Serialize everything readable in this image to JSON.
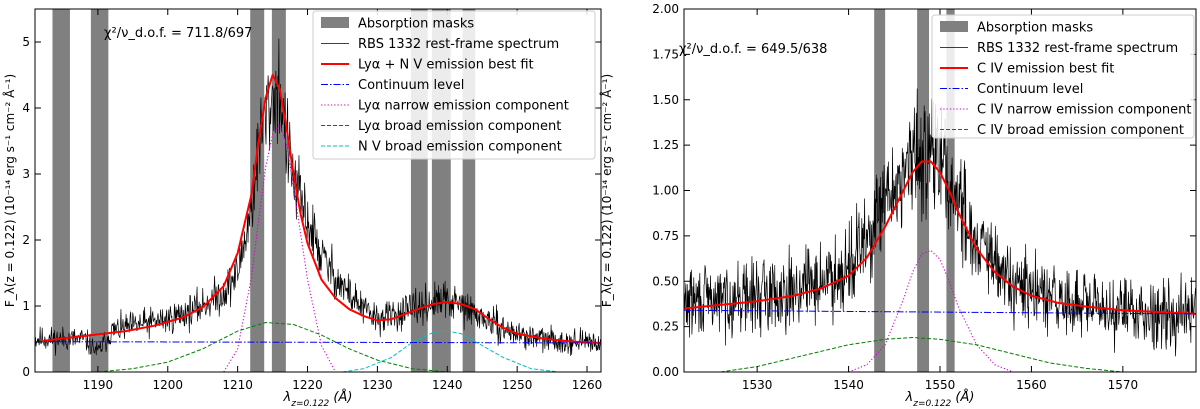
{
  "chart_data": [
    {
      "type": "line",
      "xlabel": "λ_{z=0.122} (Å)",
      "ylabel": "F_λ(z = 0.122) (10⁻¹⁴ erg s⁻¹ cm⁻² Å⁻¹)",
      "xlim": [
        1181,
        1262
      ],
      "ylim": [
        0,
        5.5
      ],
      "xticks": [
        1190,
        1200,
        1210,
        1220,
        1230,
        1240,
        1250,
        1260
      ],
      "yticks": [
        0,
        1,
        2,
        3,
        4,
        5
      ],
      "grid": false,
      "legend_position": "top-right",
      "annotation": "χ²/ν_d.o.f. = 711.8/697",
      "legend": [
        {
          "label": "Absorption masks",
          "color": "#808080",
          "style": "patch"
        },
        {
          "label": "RBS 1332 rest-frame spectrum",
          "color": "#000000",
          "style": "solid-thin"
        },
        {
          "label": "Lyα + N V emission best fit",
          "color": "#ff0000",
          "style": "solid-thick"
        },
        {
          "label": "Continuum level",
          "color": "#0000ff",
          "style": "dashdot"
        },
        {
          "label": "Lyα narrow emission component",
          "color": "#cc00cc",
          "style": "dotted"
        },
        {
          "label": "Lyα broad emission component",
          "color": "#008000",
          "style": "dashed"
        },
        {
          "label": "N V broad emission component",
          "color": "#00bfbf",
          "style": "dashed"
        }
      ],
      "masks": [
        [
          1183.5,
          1186.0
        ],
        [
          1189.0,
          1191.5
        ],
        [
          1211.8,
          1213.8
        ],
        [
          1214.9,
          1216.9
        ],
        [
          1234.8,
          1237.2
        ],
        [
          1237.8,
          1240.5
        ],
        [
          1242.2,
          1244.0
        ]
      ],
      "series": [
        {
          "key": "spectrum",
          "x": [
            1182,
            1188,
            1190,
            1192,
            1196,
            1200,
            1204,
            1208,
            1210,
            1212,
            1213,
            1214,
            1215,
            1216,
            1217,
            1218,
            1220,
            1222,
            1225,
            1228,
            1230,
            1233,
            1236,
            1238,
            1240,
            1242,
            1245,
            1248,
            1252,
            1256,
            1262
          ],
          "y": [
            0.5,
            0.5,
            0.3,
            0.62,
            0.72,
            0.8,
            0.95,
            1.2,
            1.5,
            2.5,
            3.4,
            3.9,
            4.15,
            4.3,
            3.5,
            2.9,
            2.3,
            1.75,
            1.3,
            0.95,
            0.8,
            0.88,
            0.98,
            1.05,
            1.08,
            1.0,
            0.82,
            0.65,
            0.52,
            0.47,
            0.45
          ]
        },
        {
          "key": "best_fit",
          "x": [
            1182,
            1186,
            1190,
            1194,
            1198,
            1202,
            1205,
            1208,
            1210,
            1212,
            1213,
            1214,
            1215,
            1216,
            1217,
            1218,
            1219,
            1220,
            1222,
            1224,
            1226,
            1228,
            1230,
            1232,
            1234,
            1236,
            1238,
            1240,
            1242,
            1244,
            1246,
            1248,
            1250,
            1254,
            1258,
            1262
          ],
          "y": [
            0.47,
            0.52,
            0.57,
            0.62,
            0.7,
            0.82,
            0.98,
            1.3,
            1.8,
            2.7,
            3.5,
            4.15,
            4.5,
            4.3,
            3.7,
            3.0,
            2.4,
            1.95,
            1.4,
            1.12,
            0.95,
            0.85,
            0.78,
            0.8,
            0.88,
            0.96,
            1.03,
            1.06,
            1.03,
            0.95,
            0.8,
            0.67,
            0.58,
            0.5,
            0.46,
            0.44
          ]
        },
        {
          "key": "continuum",
          "x": [
            1181,
            1262
          ],
          "y": [
            0.46,
            0.44
          ]
        },
        {
          "key": "narrow",
          "x": [
            1208,
            1210,
            1212,
            1213,
            1214,
            1215,
            1216,
            1217,
            1218,
            1220,
            1222,
            1224
          ],
          "y": [
            0.0,
            0.35,
            1.45,
            2.3,
            3.1,
            3.6,
            3.75,
            3.45,
            2.8,
            1.4,
            0.4,
            0.0
          ]
        },
        {
          "key": "broad",
          "x": [
            1190,
            1195,
            1200,
            1205,
            1210,
            1214,
            1218,
            1222,
            1226,
            1230,
            1235,
            1240
          ],
          "y": [
            0.0,
            0.05,
            0.15,
            0.35,
            0.62,
            0.75,
            0.72,
            0.56,
            0.35,
            0.18,
            0.05,
            0.0
          ]
        },
        {
          "key": "nv",
          "x": [
            1225,
            1228,
            1232,
            1235,
            1238,
            1240,
            1242,
            1245,
            1248,
            1252,
            1256
          ],
          "y": [
            0.0,
            0.05,
            0.22,
            0.45,
            0.6,
            0.62,
            0.58,
            0.4,
            0.22,
            0.05,
            0.0
          ]
        }
      ]
    },
    {
      "type": "line",
      "xlabel": "λ_{z=0.122} (Å)",
      "ylabel": "F_λ(z = 0.122) (10⁻¹⁴ erg s⁻¹ cm⁻² Å⁻¹)",
      "xlim": [
        1522,
        1578
      ],
      "ylim": [
        0,
        2.0
      ],
      "xticks": [
        1530,
        1540,
        1550,
        1560,
        1570
      ],
      "yticks": [
        0.0,
        0.25,
        0.5,
        0.75,
        1.0,
        1.25,
        1.5,
        1.75,
        2.0
      ],
      "grid": false,
      "legend_position": "top-right",
      "annotation": "χ²/ν_d.o.f. = 649.5/638",
      "legend": [
        {
          "label": "Absorption masks",
          "color": "#808080",
          "style": "patch"
        },
        {
          "label": "RBS 1332 rest-frame spectrum",
          "color": "#000000",
          "style": "solid-thin"
        },
        {
          "label": "C IV emission best fit",
          "color": "#ff0000",
          "style": "solid-thick"
        },
        {
          "label": "Continuum level",
          "color": "#0000ff",
          "style": "dashdot"
        },
        {
          "label": "C IV narrow emission component",
          "color": "#cc00cc",
          "style": "dotted"
        },
        {
          "label": "C IV broad emission component",
          "color": "#008000",
          "style": "dashed"
        }
      ],
      "masks": [
        [
          1542.8,
          1544.0
        ],
        [
          1547.5,
          1548.8
        ],
        [
          1550.7,
          1551.6
        ]
      ],
      "series": [
        {
          "key": "spectrum",
          "x": [
            1522,
            1526,
            1530,
            1534,
            1538,
            1540,
            1542,
            1544,
            1546,
            1548,
            1549,
            1550,
            1552,
            1554,
            1556,
            1558,
            1562,
            1566,
            1570,
            1574,
            1578
          ],
          "y": [
            0.38,
            0.4,
            0.42,
            0.46,
            0.52,
            0.6,
            0.72,
            0.92,
            1.1,
            1.2,
            1.25,
            1.15,
            0.95,
            0.72,
            0.58,
            0.48,
            0.4,
            0.36,
            0.34,
            0.33,
            0.33
          ]
        },
        {
          "key": "best_fit",
          "x": [
            1522,
            1526,
            1530,
            1534,
            1537,
            1540,
            1542,
            1544,
            1546,
            1547,
            1548,
            1549,
            1550,
            1551,
            1552,
            1554,
            1556,
            1558,
            1560,
            1563,
            1566,
            1570,
            1574,
            1578
          ],
          "y": [
            0.35,
            0.37,
            0.39,
            0.42,
            0.46,
            0.53,
            0.63,
            0.8,
            1.0,
            1.1,
            1.16,
            1.16,
            1.1,
            1.0,
            0.88,
            0.68,
            0.55,
            0.47,
            0.42,
            0.38,
            0.36,
            0.34,
            0.33,
            0.32
          ]
        },
        {
          "key": "continuum",
          "x": [
            1522,
            1578
          ],
          "y": [
            0.34,
            0.32
          ]
        },
        {
          "key": "narrow",
          "x": [
            1540,
            1542,
            1544,
            1546,
            1547,
            1548,
            1549,
            1550,
            1551,
            1552,
            1554,
            1556,
            1558
          ],
          "y": [
            0.0,
            0.04,
            0.15,
            0.4,
            0.55,
            0.65,
            0.67,
            0.62,
            0.5,
            0.36,
            0.15,
            0.04,
            0.0
          ]
        },
        {
          "key": "broad",
          "x": [
            1526,
            1530,
            1535,
            1540,
            1544,
            1547,
            1550,
            1554,
            1558,
            1562,
            1566,
            1570
          ],
          "y": [
            0.0,
            0.03,
            0.09,
            0.15,
            0.18,
            0.19,
            0.18,
            0.15,
            0.1,
            0.05,
            0.02,
            0.0
          ]
        }
      ]
    }
  ]
}
